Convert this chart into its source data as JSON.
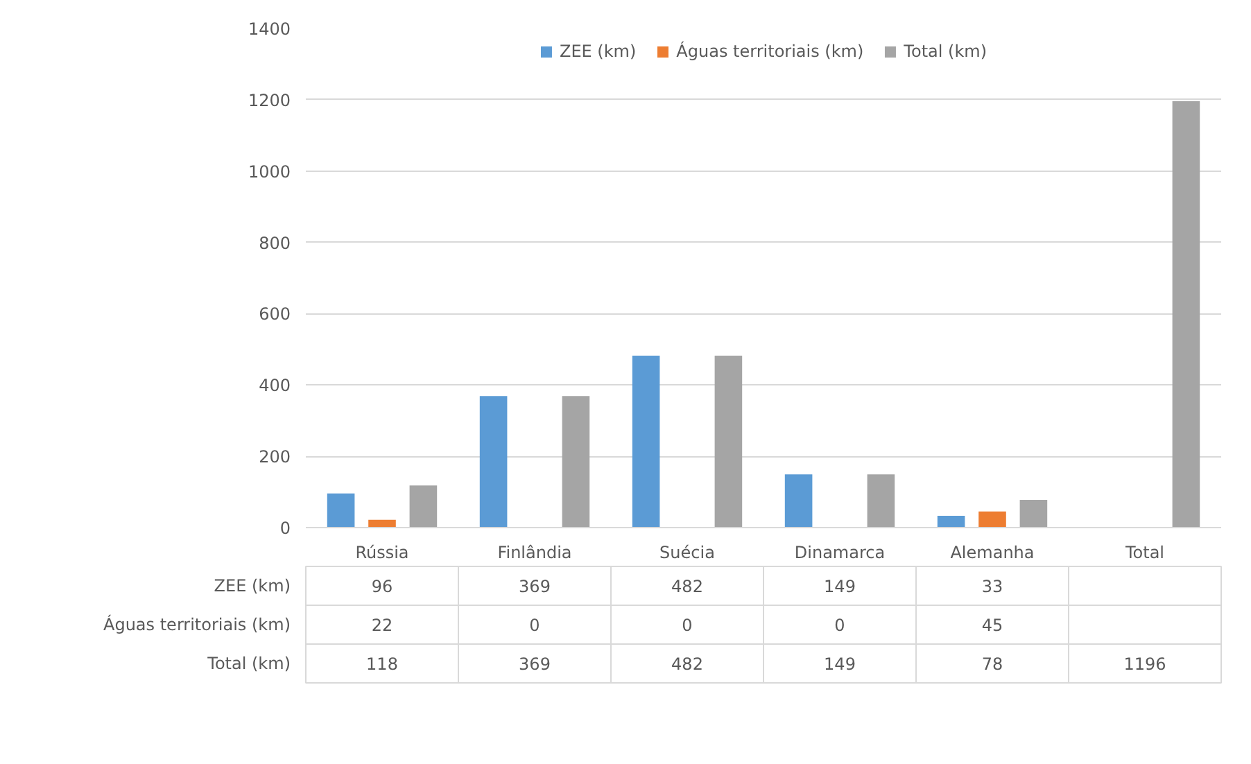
{
  "chart_data": {
    "type": "bar",
    "categories": [
      "Rússia",
      "Finlândia",
      "Suécia",
      "Dinamarca",
      "Alemanha",
      "Total"
    ],
    "series": [
      {
        "name": "ZEE (km)",
        "color": "#5b9bd5",
        "values": [
          96,
          369,
          482,
          149,
          33,
          null
        ]
      },
      {
        "name": "Águas territoriais (km)",
        "color": "#ed7d31",
        "values": [
          22,
          0,
          0,
          0,
          45,
          null
        ]
      },
      {
        "name": "Total (km)",
        "color": "#a5a5a5",
        "values": [
          118,
          369,
          482,
          149,
          78,
          1196
        ]
      }
    ],
    "ylim": [
      0,
      1400
    ],
    "yticks": [
      0,
      200,
      400,
      600,
      800,
      1000,
      1200,
      1400
    ],
    "grid": "y",
    "legend": "top",
    "data_labels": true
  }
}
